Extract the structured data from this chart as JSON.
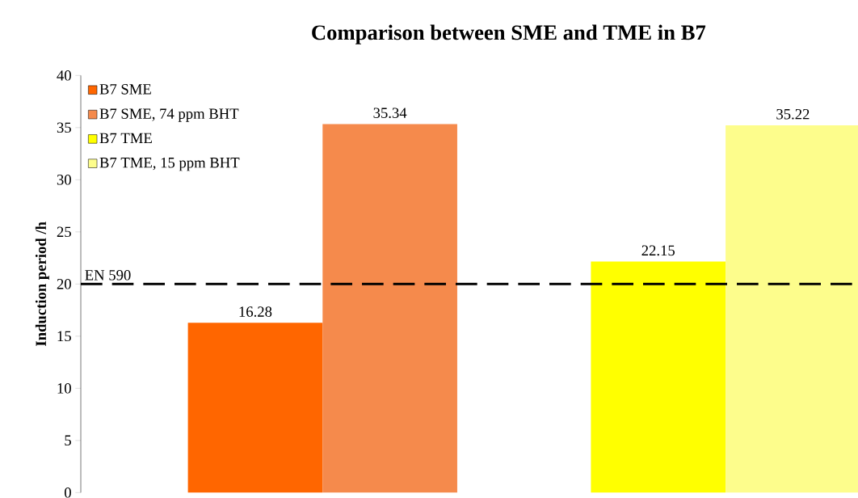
{
  "chart_data": {
    "type": "bar",
    "title": "Comparison between SME and TME in B7",
    "ylabel": "Induction period /h",
    "categories": [
      null,
      null
    ],
    "series": [
      {
        "name": "B7 SME",
        "color": "#ff6600",
        "values": [
          16.28,
          null
        ]
      },
      {
        "name": "B7 SME, 74 ppm BHT",
        "color": "#f58a4c",
        "values": [
          35.34,
          null
        ]
      },
      {
        "name": "B7 TME",
        "color": "#ffff00",
        "values": [
          null,
          22.15
        ]
      },
      {
        "name": "B7 TME, 15 ppm BHT",
        "color": "#fdfd8c",
        "values": [
          null,
          35.22
        ]
      }
    ],
    "ylim": [
      0,
      40
    ],
    "yticks": [
      0,
      5,
      10,
      15,
      20,
      25,
      30,
      35,
      40
    ],
    "ref_lines": [
      {
        "axis": "y",
        "value": 20,
        "label": "EN 590",
        "line_style": "dashed",
        "color": "#000000"
      }
    ],
    "data_labels": true,
    "grid": false,
    "legend": "top left"
  }
}
